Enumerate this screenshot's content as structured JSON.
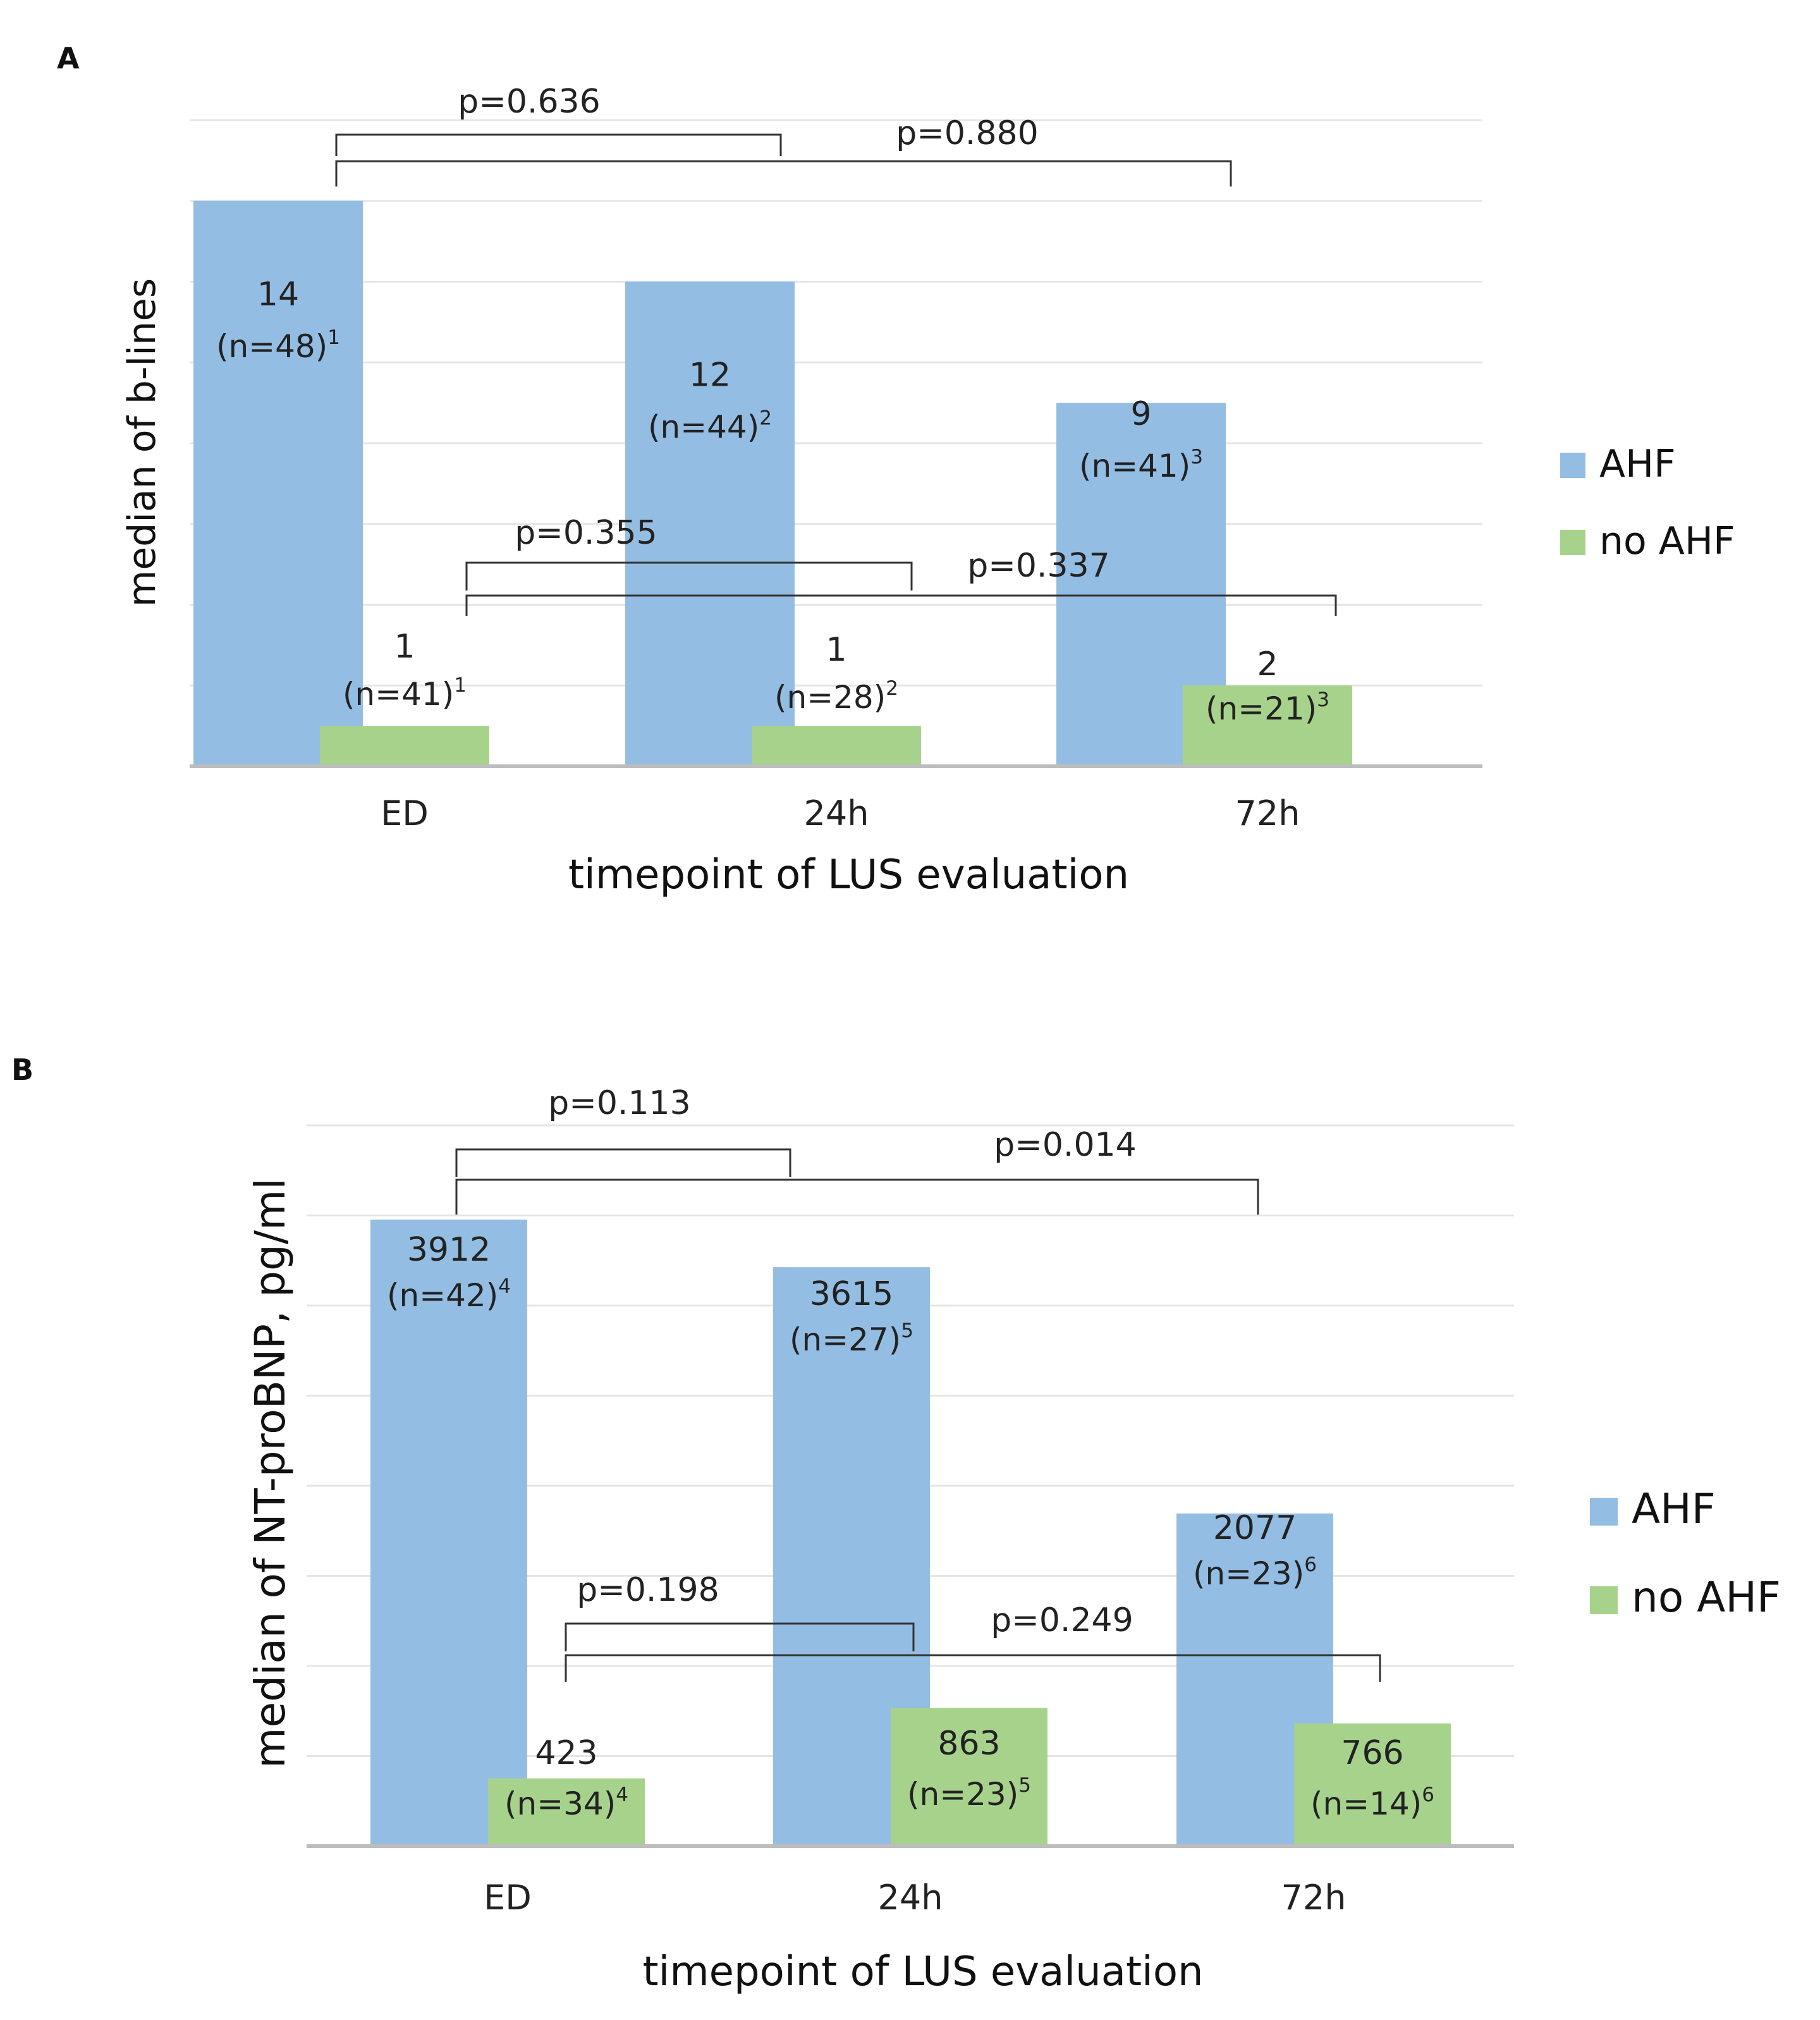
{
  "colors": {
    "AHF": "#94bde3",
    "no AHF": "#a7d28c",
    "grid": "#e5e5e5",
    "axis": "#bdbdbd"
  },
  "chart_data": [
    {
      "panel": "A",
      "type": "bar",
      "categories": [
        "ED",
        "24h",
        "72h"
      ],
      "series": [
        {
          "name": "AHF",
          "values": [
            14,
            12,
            9
          ],
          "value_labels": [
            "14",
            "12",
            "9"
          ],
          "n_labels": [
            {
              "text": "(n=48)",
              "sup": "1"
            },
            {
              "text": "(n=44)",
              "sup": "2"
            },
            {
              "text": "(n=41)",
              "sup": "3"
            }
          ]
        },
        {
          "name": "no AHF",
          "values": [
            1,
            1,
            2
          ],
          "value_labels": [
            "1",
            "1",
            "2"
          ],
          "n_labels": [
            {
              "text": "(n=41)",
              "sup": "1"
            },
            {
              "text": "(n=28)",
              "sup": "2"
            },
            {
              "text": "(n=21)",
              "sup": "3"
            }
          ]
        }
      ],
      "ylim": [
        0,
        16
      ],
      "grid": true,
      "xlabel": "timepoint of LUS evaluation",
      "ylabel": "median of b-lines",
      "legend": "right",
      "comparisons": [
        {
          "series": "AHF",
          "from": "ED",
          "to": "24h",
          "label": "p=0.636"
        },
        {
          "series": "AHF",
          "from": "ED",
          "to": "72h",
          "label": "p=0.880"
        },
        {
          "series": "no AHF",
          "from": "ED",
          "to": "24h",
          "label": "p=0.355"
        },
        {
          "series": "no AHF",
          "from": "ED",
          "to": "72h",
          "label": "p=0.337"
        }
      ]
    },
    {
      "panel": "B",
      "type": "bar",
      "categories": [
        "ED",
        "24h",
        "72h"
      ],
      "series": [
        {
          "name": "AHF",
          "values": [
            3912,
            3615,
            2077
          ],
          "value_labels": [
            "3912",
            "3615",
            "2077"
          ],
          "n_labels": [
            {
              "text": "(n=42)",
              "sup": "4"
            },
            {
              "text": "(n=27)",
              "sup": "5"
            },
            {
              "text": "(n=23)",
              "sup": "6"
            }
          ]
        },
        {
          "name": "no AHF",
          "values": [
            423,
            863,
            766
          ],
          "value_labels": [
            "423",
            "863",
            "766"
          ],
          "n_labels": [
            {
              "text": "(n=34)",
              "sup": "4"
            },
            {
              "text": "(n=23)",
              "sup": "5"
            },
            {
              "text": "(n=14)",
              "sup": "6"
            }
          ]
        }
      ],
      "ylim": [
        0,
        4500
      ],
      "grid": true,
      "xlabel": "timepoint of LUS evaluation",
      "ylabel": "median of NT-proBNP, pg/ml",
      "legend": "right",
      "comparisons": [
        {
          "series": "AHF",
          "from": "ED",
          "to": "24h",
          "label": "p=0.113"
        },
        {
          "series": "AHF",
          "from": "ED",
          "to": "72h",
          "label": "p=0.014"
        },
        {
          "series": "no AHF",
          "from": "ED",
          "to": "24h",
          "label": "p=0.198"
        },
        {
          "series": "no AHF",
          "from": "ED",
          "to": "72h",
          "label": "p=0.249"
        }
      ]
    }
  ]
}
